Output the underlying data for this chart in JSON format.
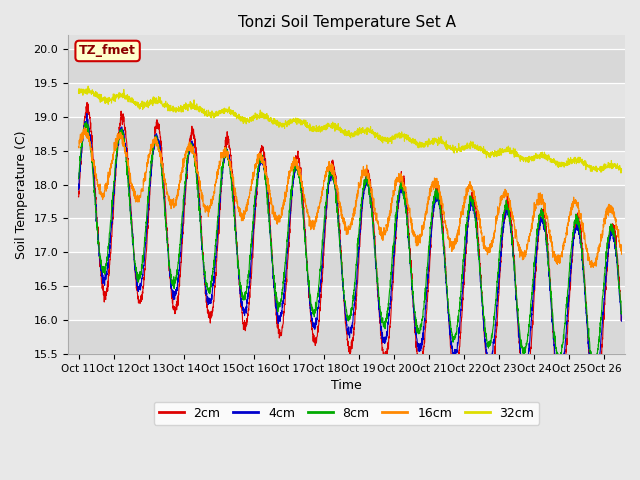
{
  "title": "Tonzi Soil Temperature Set A",
  "xlabel": "Time",
  "ylabel": "Soil Temperature (C)",
  "ylim": [
    15.5,
    20.2
  ],
  "figsize": [
    6.4,
    4.8
  ],
  "dpi": 100,
  "x_tick_labels": [
    "Oct 11",
    "Oct 12",
    "Oct 13",
    "Oct 14",
    "Oct 15",
    "Oct 16",
    "Oct 17",
    "Oct 18",
    "Oct 19",
    "Oct 20",
    "Oct 21",
    "Oct 22",
    "Oct 23",
    "Oct 24",
    "Oct 25",
    "Oct 26"
  ],
  "x_tick_positions": [
    0,
    1,
    2,
    3,
    4,
    5,
    6,
    7,
    8,
    9,
    10,
    11,
    12,
    13,
    14,
    15
  ],
  "series_colors": {
    "2cm": "#dd0000",
    "4cm": "#0000cc",
    "8cm": "#00aa00",
    "16cm": "#ff8800",
    "32cm": "#dddd00"
  },
  "series_labels": [
    "2cm",
    "4cm",
    "8cm",
    "16cm",
    "32cm"
  ],
  "legend_colors": [
    "#dd0000",
    "#0000cc",
    "#00aa00",
    "#ff8800",
    "#dddd00"
  ],
  "annotation_text": "TZ_fmet",
  "annotation_bg": "#ffffcc",
  "annotation_border": "#cc0000",
  "n_points": 3000,
  "days": 15.5,
  "base_temps": {
    "2cm": 17.8,
    "4cm": 17.8,
    "8cm": 17.85,
    "16cm": 18.35,
    "32cm": 19.35
  },
  "amplitudes": {
    "2cm": 1.35,
    "4cm": 1.15,
    "8cm": 1.05,
    "16cm": 0.45,
    "32cm": 0.05
  },
  "trends": {
    "2cm": -0.115,
    "4cm": -0.11,
    "8cm": -0.1,
    "16cm": -0.075,
    "32cm": -0.073
  },
  "phase_shifts": {
    "2cm": 0.0,
    "4cm": 0.12,
    "8cm": 0.22,
    "16cm": 0.45,
    "32cm": 0.0
  },
  "noise_levels": {
    "2cm": 0.04,
    "4cm": 0.035,
    "8cm": 0.035,
    "16cm": 0.04,
    "32cm": 0.025
  },
  "yticks": [
    15.5,
    16.0,
    16.5,
    17.0,
    17.5,
    18.0,
    18.5,
    19.0,
    19.5,
    20.0
  ],
  "band_colors": [
    "#d8d8d8",
    "#e4e4e4"
  ],
  "fig_bg": "#e8e8e8",
  "plot_bg": "#e0e0e0"
}
